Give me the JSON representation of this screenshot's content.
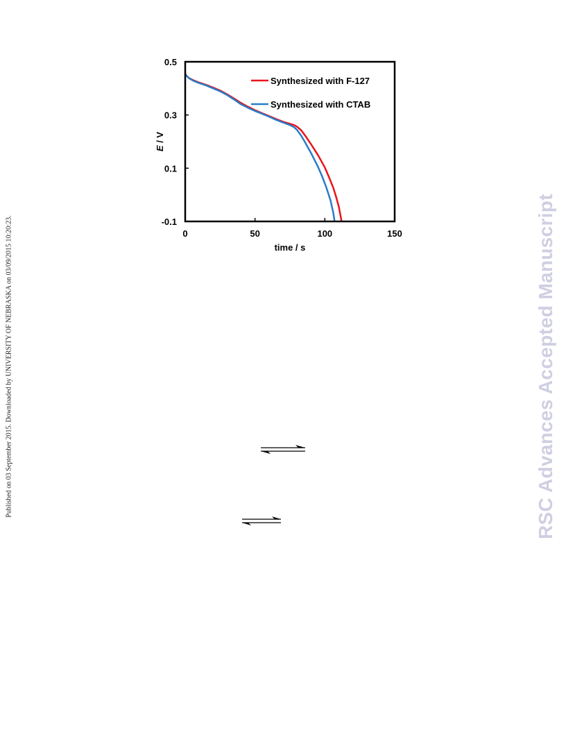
{
  "side_note": "Published on 03 September 2015. Downloaded by UNIVERSITY OF NEBRASKA on 03/09/2015 10:20:23.",
  "watermark": "RSC Advances Accepted Manuscript",
  "colors": {
    "f127": "#e8141b",
    "ctab": "#2a7cc7",
    "axis": "#000000",
    "watermark": "#cfcfe2"
  },
  "icons": [
    "equilibrium-arrow-icon",
    "equilibrium-arrow-icon"
  ],
  "chart_data": {
    "type": "line",
    "xlabel": "time / s",
    "ylabel_italic": "E",
    "ylabel_rest": " / V",
    "xlim": [
      0,
      150
    ],
    "ylim": [
      -0.1,
      0.5
    ],
    "xticks": [
      0,
      50,
      100,
      150
    ],
    "xtick_labels": [
      "0",
      "50",
      "100",
      "150"
    ],
    "yticks": [
      -0.1,
      0.1,
      0.3,
      0.5
    ],
    "ytick_labels": [
      "-0.1",
      "0.1",
      "0.3",
      "0.5"
    ],
    "grid": false,
    "legend_position": "top-right",
    "series": [
      {
        "name": "Synthesized with F-127",
        "color": "#e8141b",
        "x": [
          0,
          1,
          3,
          6,
          10,
          15,
          20,
          25,
          30,
          35,
          40,
          45,
          50,
          55,
          60,
          65,
          70,
          75,
          78,
          80,
          83,
          86,
          90,
          95,
          100,
          103,
          106,
          108,
          110,
          112
        ],
        "y": [
          0.455,
          0.447,
          0.438,
          0.43,
          0.422,
          0.413,
          0.403,
          0.392,
          0.378,
          0.362,
          0.345,
          0.331,
          0.318,
          0.307,
          0.296,
          0.285,
          0.275,
          0.267,
          0.262,
          0.256,
          0.243,
          0.222,
          0.191,
          0.15,
          0.103,
          0.066,
          0.027,
          -0.006,
          -0.045,
          -0.1
        ]
      },
      {
        "name": "Synthesized with CTAB",
        "color": "#2a7cc7",
        "x": [
          0,
          1,
          3,
          6,
          10,
          15,
          20,
          25,
          30,
          35,
          40,
          45,
          50,
          55,
          60,
          65,
          70,
          75,
          78,
          80,
          83,
          86,
          90,
          95,
          98,
          101,
          104,
          106,
          107
        ],
        "y": [
          0.455,
          0.447,
          0.437,
          0.428,
          0.42,
          0.411,
          0.4,
          0.389,
          0.375,
          0.358,
          0.34,
          0.327,
          0.315,
          0.305,
          0.294,
          0.282,
          0.272,
          0.262,
          0.254,
          0.244,
          0.223,
          0.196,
          0.158,
          0.106,
          0.07,
          0.029,
          -0.02,
          -0.066,
          -0.1
        ]
      }
    ]
  }
}
